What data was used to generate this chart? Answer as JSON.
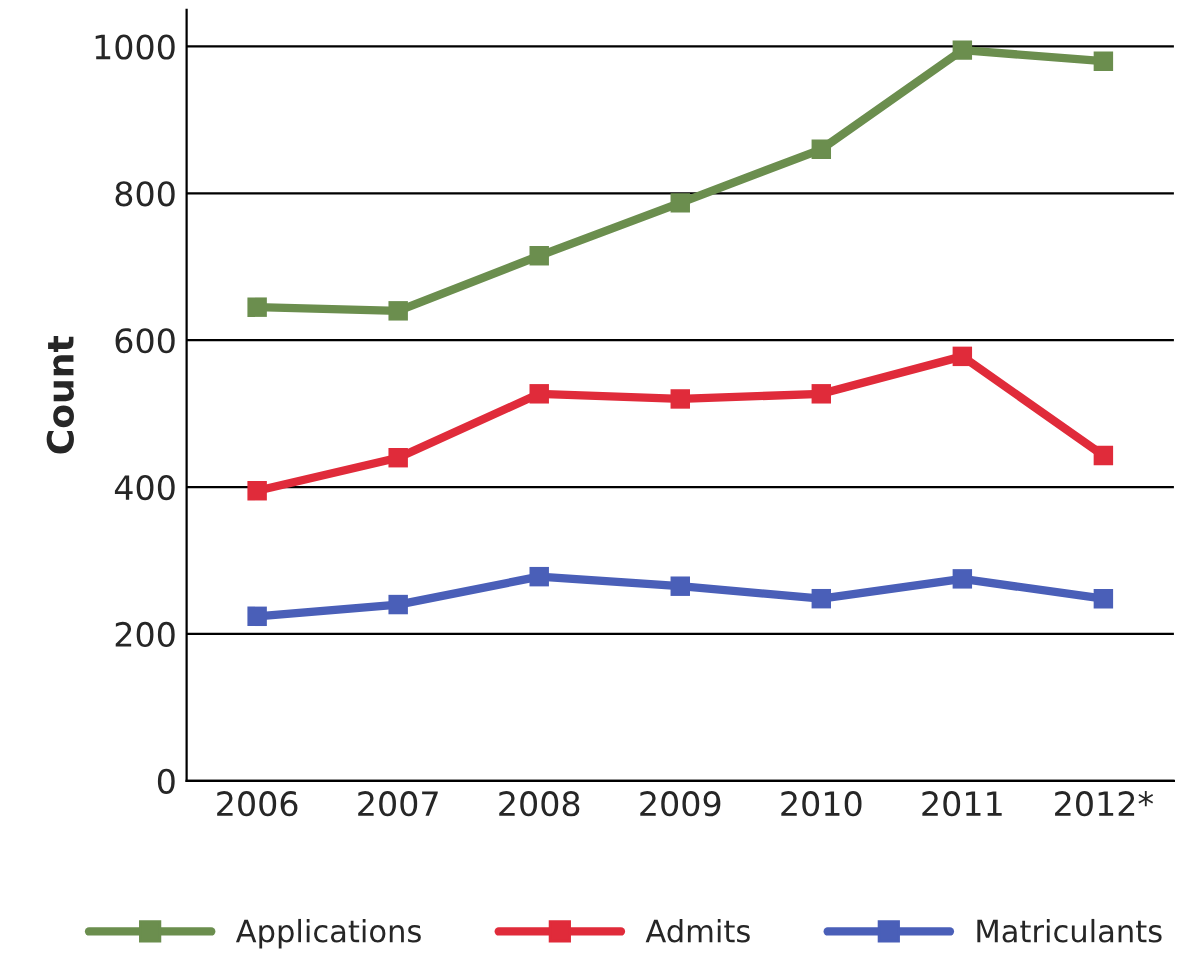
{
  "chart_data": {
    "type": "line",
    "ylabel": "Count",
    "categories": [
      "2006",
      "2007",
      "2008",
      "2009",
      "2010",
      "2011",
      "2012*"
    ],
    "series": [
      {
        "name": "Applications",
        "color": "#6b8e4e",
        "values": [
          645,
          640,
          715,
          787,
          860,
          995,
          980
        ]
      },
      {
        "name": "Admits",
        "color": "#e02b3a",
        "values": [
          395,
          440,
          527,
          520,
          527,
          578,
          443
        ]
      },
      {
        "name": "Matriculants",
        "color": "#4a5fb8",
        "values": [
          224,
          240,
          278,
          265,
          248,
          275,
          248
        ]
      }
    ],
    "ylim": [
      0,
      1050
    ],
    "yticks": [
      0,
      200,
      400,
      600,
      800,
      1000
    ],
    "grid": "y",
    "legend": "bottom",
    "marker": "square",
    "line_style": "solid"
  }
}
